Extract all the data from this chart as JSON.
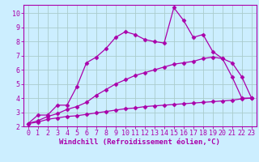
{
  "line1_x": [
    0,
    1,
    2,
    3,
    4,
    5,
    6,
    7,
    8,
    9,
    10,
    11,
    12,
    13,
    14,
    15,
    16,
    17,
    18,
    19,
    20,
    21,
    22,
    23
  ],
  "line1_y": [
    2.2,
    2.8,
    2.8,
    3.5,
    3.5,
    4.8,
    6.5,
    6.9,
    7.5,
    8.3,
    8.7,
    8.5,
    8.15,
    8.0,
    7.9,
    10.4,
    9.5,
    8.3,
    8.5,
    7.3,
    6.8,
    5.5,
    4.0,
    4.0
  ],
  "line2_x": [
    0,
    1,
    2,
    3,
    4,
    5,
    6,
    7,
    8,
    9,
    10,
    11,
    12,
    13,
    14,
    15,
    16,
    17,
    18,
    19,
    20,
    21,
    22,
    23
  ],
  "line2_y": [
    2.2,
    2.4,
    2.7,
    2.9,
    3.2,
    3.4,
    3.7,
    4.2,
    4.6,
    5.0,
    5.3,
    5.6,
    5.8,
    6.0,
    6.2,
    6.4,
    6.5,
    6.6,
    6.8,
    6.9,
    6.8,
    6.5,
    5.5,
    4.0
  ],
  "line3_x": [
    0,
    1,
    2,
    3,
    4,
    5,
    6,
    7,
    8,
    9,
    10,
    11,
    12,
    13,
    14,
    15,
    16,
    17,
    18,
    19,
    20,
    21,
    22,
    23
  ],
  "line3_y": [
    2.2,
    2.3,
    2.5,
    2.6,
    2.7,
    2.75,
    2.85,
    2.95,
    3.05,
    3.15,
    3.25,
    3.3,
    3.4,
    3.45,
    3.5,
    3.55,
    3.6,
    3.65,
    3.7,
    3.75,
    3.8,
    3.85,
    3.95,
    4.0
  ],
  "line_color": "#aa00aa",
  "bg_color": "#cceeff",
  "grid_color": "#aacccc",
  "xlabel": "Windchill (Refroidissement éolien,°C)",
  "xlim": [
    -0.5,
    23.5
  ],
  "ylim": [
    2.0,
    10.6
  ],
  "yticks": [
    2,
    3,
    4,
    5,
    6,
    7,
    8,
    9,
    10
  ],
  "xticks": [
    0,
    1,
    2,
    3,
    4,
    5,
    6,
    7,
    8,
    9,
    10,
    11,
    12,
    13,
    14,
    15,
    16,
    17,
    18,
    19,
    20,
    21,
    22,
    23
  ],
  "marker": "D",
  "markersize": 2.5,
  "linewidth": 0.9,
  "xlabel_fontsize": 6.5,
  "tick_fontsize": 6.0,
  "tick_color": "#aa00aa",
  "axis_color": "#aa00aa"
}
